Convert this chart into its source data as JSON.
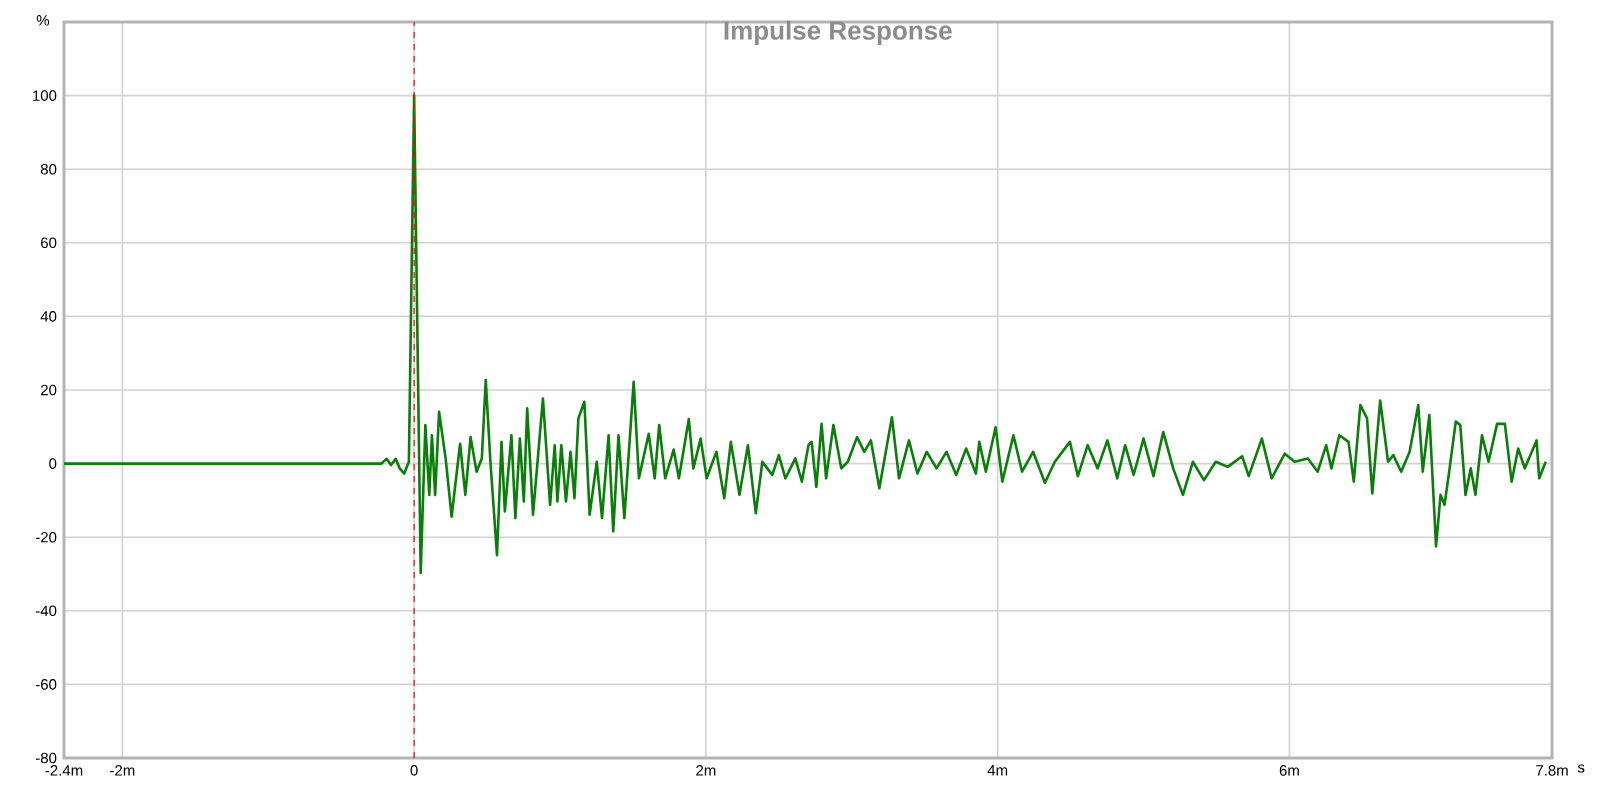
{
  "chart_data": {
    "type": "line",
    "title": "Impulse Response",
    "xlabel": "s",
    "ylabel": "%",
    "x": [
      -2.4,
      -0.225,
      -0.189,
      -0.158,
      -0.126,
      -0.099,
      -0.068,
      -0.036,
      0.0,
      0.045,
      0.077,
      0.104,
      0.122,
      0.144,
      0.171,
      0.216,
      0.257,
      0.315,
      0.351,
      0.387,
      0.428,
      0.464,
      0.491,
      0.523,
      0.568,
      0.599,
      0.622,
      0.667,
      0.694,
      0.725,
      0.752,
      0.775,
      0.815,
      0.883,
      0.932,
      0.964,
      0.982,
      1.009,
      1.041,
      1.072,
      1.099,
      1.126,
      1.167,
      1.203,
      1.252,
      1.288,
      1.333,
      1.365,
      1.401,
      1.441,
      1.505,
      1.541,
      1.608,
      1.649,
      1.68,
      1.721,
      1.779,
      1.815,
      1.883,
      1.914,
      1.964,
      2.005,
      2.072,
      2.126,
      2.171,
      2.23,
      2.288,
      2.342,
      2.387,
      2.455,
      2.5,
      2.545,
      2.613,
      2.658,
      2.703,
      2.725,
      2.757,
      2.793,
      2.824,
      2.874,
      2.928,
      2.973,
      3.036,
      3.086,
      3.131,
      3.189,
      3.275,
      3.324,
      3.392,
      3.45,
      3.514,
      3.581,
      3.649,
      3.716,
      3.784,
      3.851,
      3.874,
      3.919,
      3.986,
      4.032,
      4.108,
      4.167,
      4.243,
      4.324,
      4.392,
      4.495,
      4.55,
      4.617,
      4.685,
      4.752,
      4.82,
      4.874,
      4.932,
      5.0,
      5.068,
      5.135,
      5.203,
      5.27,
      5.338,
      5.414,
      5.495,
      5.577,
      5.676,
      5.721,
      5.811,
      5.878,
      5.968,
      6.036,
      6.126,
      6.194,
      6.252,
      6.288,
      6.342,
      6.405,
      6.441,
      6.486,
      6.532,
      6.568,
      6.622,
      6.676,
      6.712,
      6.766,
      6.824,
      6.883,
      6.914,
      6.959,
      7.005,
      7.036,
      7.063,
      7.095,
      7.14,
      7.171,
      7.207,
      7.243,
      7.275,
      7.32,
      7.365,
      7.423,
      7.477,
      7.523,
      7.568,
      7.613,
      7.694,
      7.712,
      7.757
    ],
    "series": [
      {
        "color": "#0a7d0a",
        "values": [
          0,
          0,
          1.3,
          -0.4,
          1.3,
          -1.3,
          -2.7,
          0.5,
          100,
          -29.7,
          10.5,
          -8.5,
          7.7,
          -8.5,
          14.1,
          1.4,
          -14.4,
          5.4,
          -8.5,
          7.2,
          -2.2,
          1.4,
          22.7,
          0.5,
          -24.9,
          5.9,
          -13,
          7.7,
          -14.8,
          6.8,
          -10.3,
          15,
          -13.9,
          17.7,
          -11.2,
          5,
          -10.3,
          5,
          -10.3,
          3.2,
          -9.4,
          12.3,
          16.8,
          -13.9,
          0.5,
          -14.8,
          7.7,
          -18.4,
          7.7,
          -14.8,
          22.2,
          -4,
          8.1,
          -4,
          10.5,
          -4,
          3.8,
          -4,
          12.1,
          -1.3,
          6.8,
          -4,
          3.2,
          -9.4,
          5.9,
          -8.5,
          5,
          -13.5,
          0.5,
          -3.1,
          2.3,
          -4,
          1.4,
          -4.9,
          5,
          5.9,
          -6.3,
          10.8,
          -4,
          10.5,
          -1.3,
          0.5,
          7.2,
          3.2,
          6.3,
          -6.7,
          12.6,
          -4,
          6.3,
          -2.7,
          3.2,
          -1.3,
          3.2,
          -3.1,
          4.1,
          -2.7,
          5.9,
          -2.2,
          9.9,
          -4.9,
          7.7,
          -2.2,
          3.2,
          -5.2,
          0.5,
          5.9,
          -3.4,
          5,
          -1.3,
          6.3,
          -4,
          5,
          -3.1,
          6.8,
          -3.4,
          8.6,
          -1.3,
          -8.5,
          0.5,
          -4.5,
          0.5,
          -0.9,
          2,
          -3.4,
          6.8,
          -4,
          2.7,
          0.5,
          1.4,
          -2.2,
          5,
          -1.3,
          7.7,
          5.9,
          -4.9,
          15.9,
          12.3,
          -8.1,
          17.1,
          0.5,
          2.3,
          -2.2,
          3.2,
          15.9,
          -2.2,
          13.2,
          -22.5,
          -8.5,
          -11.2,
          -2.2,
          11.4,
          10.5,
          -8.5,
          -1.3,
          -8.5,
          7.7,
          0.5,
          10.8,
          10.8,
          -4.9,
          4.1,
          -1.3,
          6.3,
          -4,
          0.5
        ]
      }
    ],
    "xlim": [
      -2.4,
      7.8
    ],
    "ylim": [
      -80,
      120
    ],
    "xticks": [
      {
        "value": -2.4,
        "label": "-2.4m"
      },
      {
        "value": -2,
        "label": "-2m"
      },
      0,
      {
        "value": 2,
        "label": "2m"
      },
      {
        "value": 4,
        "label": "4m"
      },
      {
        "value": 6,
        "label": "6m"
      },
      {
        "value": 7.8,
        "label": "7.8m"
      }
    ],
    "yticks": [
      -80,
      -60,
      -40,
      -20,
      0,
      20,
      40,
      60,
      80,
      100
    ],
    "grid": true,
    "marker": "none",
    "line_style": "solid",
    "ref_lines": [
      {
        "axis": "x",
        "value": 0,
        "color": "#ff0000",
        "line_style": "dashed"
      }
    ]
  }
}
